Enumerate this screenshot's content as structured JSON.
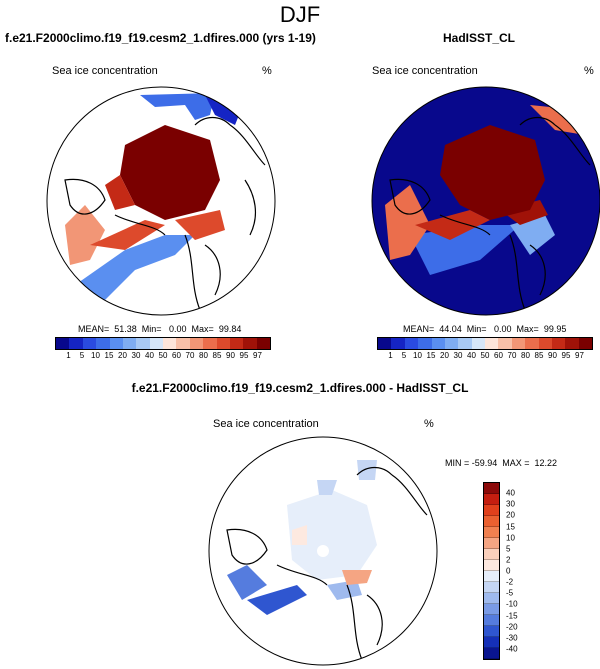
{
  "title": "DJF",
  "panels": {
    "model": {
      "case": "f.e21.F2000climo.f19_f19.cesm2_1.dfires.000 (yrs 1-19)",
      "field": "Sea ice concentration",
      "units": "%",
      "stats": "MEAN=  51.38  Min=   0.00  Max=  99.84"
    },
    "obs": {
      "case": "HadISST_CL",
      "field": "Sea ice concentration",
      "units": "%",
      "stats": "MEAN=  44.04  Min=   0.00  Max=  99.95"
    },
    "diff": {
      "case": "f.e21.F2000climo.f19_f19.cesm2_1.dfires.000 - HadISST_CL",
      "field": "Sea ice concentration",
      "units": "%",
      "stats": "MIN = -59.94  MAX =  12.22"
    }
  },
  "chart_data": [
    {
      "type": "heatmap",
      "title": "f.e21.F2000climo.f19_f19.cesm2_1.dfires.000 (yrs 1-19)",
      "subtitle": "Sea ice concentration",
      "projection": "polar-stereographic-north",
      "colorbar_levels": [
        "1",
        "5",
        "10",
        "15",
        "20",
        "30",
        "40",
        "50",
        "60",
        "70",
        "80",
        "85",
        "90",
        "95",
        "97"
      ],
      "colorbar_colors": [
        "#08088c",
        "#1524c4",
        "#2a4be0",
        "#3d6de8",
        "#5a8ff0",
        "#7fadf2",
        "#a8c9f4",
        "#d6e6f8",
        "#fde5da",
        "#f8c0a8",
        "#f29676",
        "#eb6e4c",
        "#dd4a2c",
        "#c42a16",
        "#a01208",
        "#7a0000"
      ],
      "mean": 51.38,
      "min": 0.0,
      "max": 99.84
    },
    {
      "type": "heatmap",
      "title": "HadISST_CL",
      "subtitle": "Sea ice concentration",
      "projection": "polar-stereographic-north",
      "colorbar_levels": [
        "1",
        "5",
        "10",
        "15",
        "20",
        "30",
        "40",
        "50",
        "60",
        "70",
        "80",
        "85",
        "90",
        "95",
        "97"
      ],
      "mean": 44.04,
      "min": 0.0,
      "max": 99.95
    },
    {
      "type": "heatmap",
      "title": "f.e21.F2000climo.f19_f19.cesm2_1.dfires.000 - HadISST_CL",
      "subtitle": "Sea ice concentration",
      "projection": "polar-stereographic-north",
      "colorbar_levels": [
        "40",
        "30",
        "20",
        "15",
        "10",
        "5",
        "2",
        "0",
        "-2",
        "-5",
        "-10",
        "-15",
        "-20",
        "-30",
        "-40"
      ],
      "colorbar_colors": [
        "#8c0a0a",
        "#c41e10",
        "#e0401c",
        "#ea6030",
        "#f08050",
        "#f5a583",
        "#fad0bc",
        "#fde9e0",
        "#e6eefa",
        "#c5d6f4",
        "#9fbaee",
        "#7a9be6",
        "#557cde",
        "#2f56d0",
        "#1530b8",
        "#0a1590"
      ],
      "min": -59.94,
      "max": 12.22
    }
  ]
}
